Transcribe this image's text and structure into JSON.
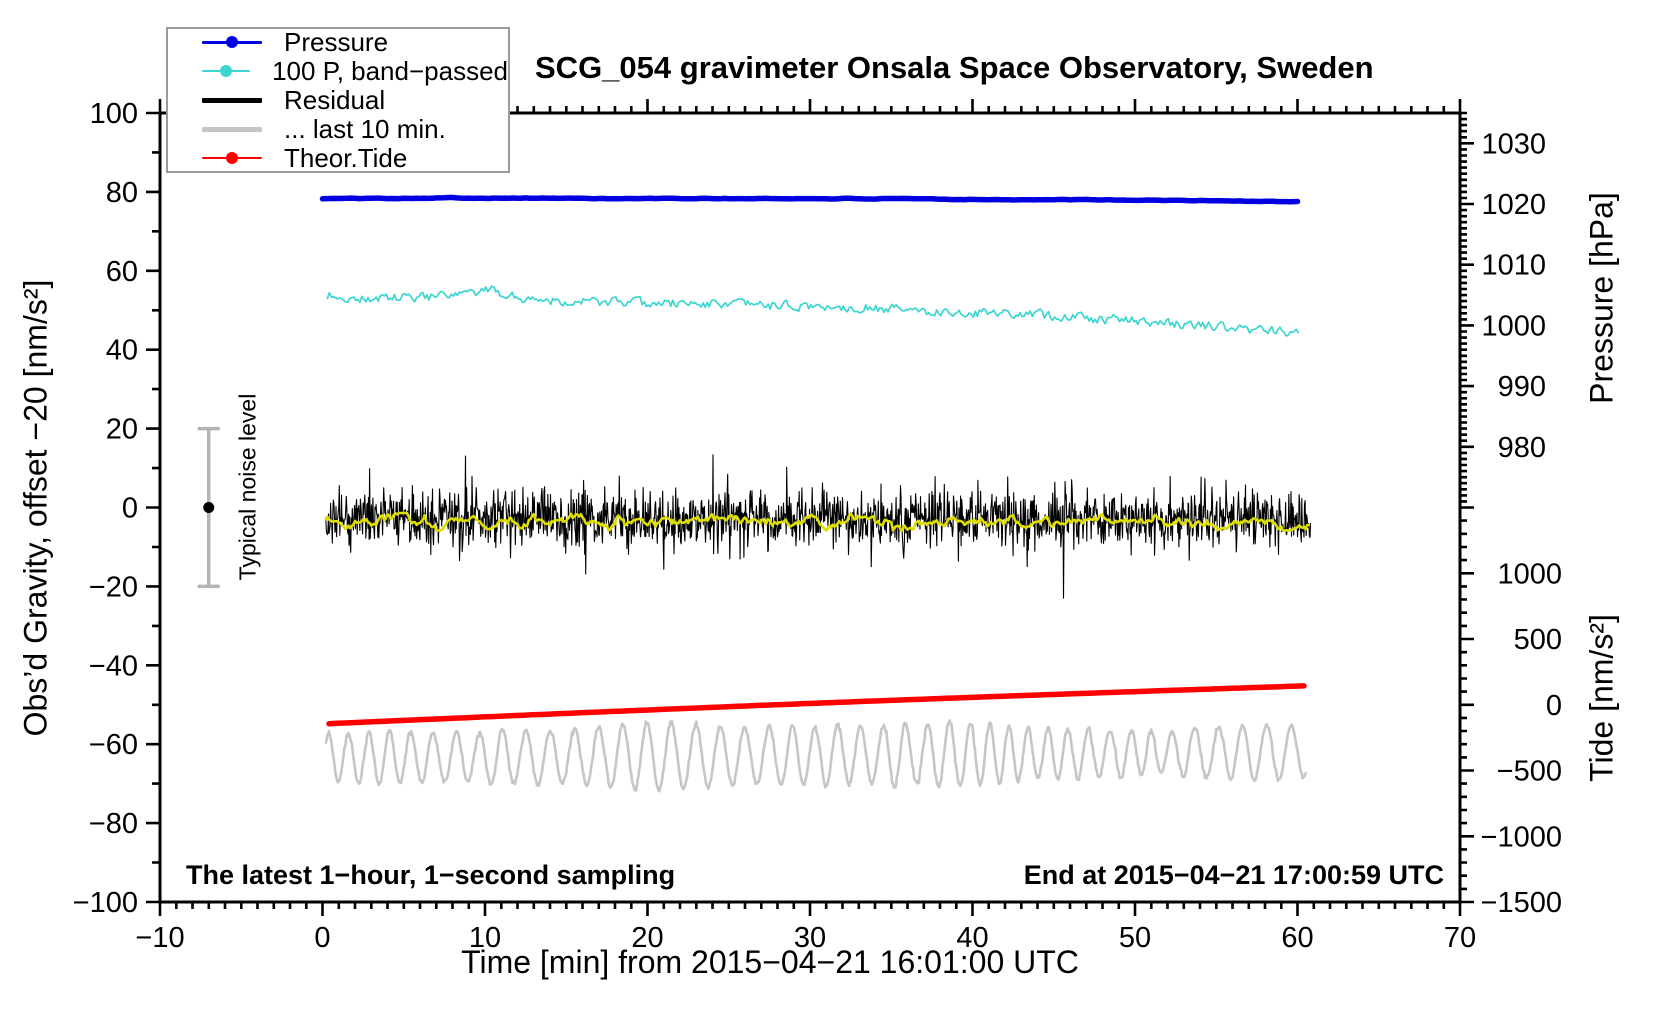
{
  "title": "SCG_054 gravimeter Onsala Space Observatory, Sweden",
  "annotations": {
    "sampling_note": "The latest 1−hour, 1−second sampling",
    "end_note": "End at 2015−04−21 17:00:59 UTC"
  },
  "legend": {
    "items": [
      {
        "label": "Pressure",
        "color": "#0000e0",
        "line_width": 3,
        "marker": true
      },
      {
        "label": "100 P, band−passed",
        "color": "#3cd5d0",
        "line_width": 2.5,
        "marker": true
      },
      {
        "label": "Residual",
        "color": "#000000",
        "line_width": 5,
        "marker": false
      },
      {
        "label": "... last 10 min.",
        "color": "#c4c4c4",
        "line_width": 5,
        "marker": false
      },
      {
        "label": "Theor.Tide",
        "color": "#ff0000",
        "line_width": 2.5,
        "marker": true
      }
    ]
  },
  "chart_data": {
    "type": "line",
    "title": "SCG_054 gravimeter Onsala Space Observatory, Sweden",
    "xlabel": "Time [min] from 2015−04−21 16:01:00 UTC",
    "ylabel_left": "Obs’d Gravity, offset −20 [nm/s²]",
    "xlim": [
      -10,
      70
    ],
    "ylim_left": [
      -100,
      100
    ],
    "grid": false,
    "x_ticks": {
      "values": [
        -10,
        0,
        10,
        20,
        30,
        40,
        50,
        60,
        70
      ],
      "labels": [
        "−10",
        "0",
        "10",
        "20",
        "30",
        "40",
        "50",
        "60",
        "70"
      ],
      "minor_step": 1
    },
    "y_ticks_left": {
      "values": [
        100,
        80,
        60,
        40,
        20,
        0,
        -20,
        -40,
        -60,
        -80,
        -100
      ],
      "labels": [
        "100",
        "80",
        "60",
        "40",
        "20",
        "0",
        "−20",
        "−40",
        "−60",
        "−80",
        "−100"
      ],
      "minor_step": 10
    },
    "right_axis_pressure": {
      "label": "Pressure [hPa]",
      "range": [
        970,
        1035
      ],
      "maps_to_gravity": [
        0,
        100
      ],
      "major_ticks": {
        "values": [
          1030,
          1020,
          1010,
          1000,
          990,
          980
        ],
        "labels": [
          "1030",
          "1020",
          "1010",
          "1000",
          "990",
          "980"
        ]
      },
      "minor_step": 1
    },
    "right_axis_tide": {
      "label": "Tide [nm/s²]",
      "range": [
        -1500,
        1500
      ],
      "maps_to_gravity": [
        -100,
        0
      ],
      "major_ticks": {
        "values": [
          1000,
          500,
          0,
          -500,
          -1000,
          -1500
        ],
        "labels": [
          "1000",
          "500",
          "0",
          "−500",
          "−1000",
          "−1500"
        ]
      },
      "minor_step": 100
    },
    "noise_bar": {
      "x": -7,
      "center": 0,
      "half_span": 20,
      "label": "Typical noise level",
      "bar_color": "#b4b4b4",
      "dot_color": "#000000"
    },
    "series": [
      {
        "name": "Pressure",
        "color": "#0000e0",
        "width": 5.5,
        "points_per_min": 4,
        "x_range": [
          0,
          60.1
        ],
        "seed": 101,
        "gen": {
          "kind": "control",
          "corr": 0.7,
          "noise": 0.08,
          "points": [
            [
              0,
              78.3
            ],
            [
              8,
              78.5
            ],
            [
              20,
              78.3
            ],
            [
              32,
              78.3
            ],
            [
              45,
              78.0
            ],
            [
              55,
              77.8
            ],
            [
              60.1,
              77.5
            ]
          ]
        },
        "reading": "barometric pressure ~1020.5 hPa, nearly flat, slight decline"
      },
      {
        "name": "100 P, band−passed",
        "color": "#3cd5d0",
        "width": 1.7,
        "points_per_min": 8,
        "x_range": [
          0.3,
          60.1
        ],
        "seed": 202,
        "gen": {
          "kind": "control",
          "corr": 0.35,
          "noise": 0.55,
          "points": [
            [
              0.3,
              53.8
            ],
            [
              2,
              52.8
            ],
            [
              5,
              53.2
            ],
            [
              8,
              53.5
            ],
            [
              10.5,
              55.0
            ],
            [
              12,
              53.2
            ],
            [
              15,
              52.3
            ],
            [
              20,
              51.8
            ],
            [
              25,
              51.6
            ],
            [
              30,
              50.9
            ],
            [
              34,
              50.6
            ],
            [
              38,
              49.6
            ],
            [
              42,
              49.2
            ],
            [
              46,
              48.4
            ],
            [
              50,
              47.3
            ],
            [
              54,
              46.2
            ],
            [
              58,
              44.9
            ],
            [
              60.1,
              44.4
            ]
          ]
        },
        "reading": "scaled band-passed pressure, declines from ~54 to ~44 nm/s2 equivalent"
      },
      {
        "name": "Residual",
        "color": "#000000",
        "width": 1.1,
        "points_per_min": 30,
        "x_range": [
          0.2,
          60.8
        ],
        "seed": 303,
        "gen": {
          "kind": "noise",
          "mean": -3,
          "sigma": 3.6,
          "spike_p": 0.015,
          "spike_amp": 9
        },
        "reading": "high-frequency residual noise band centered near -3, excursions to about +14 / -22"
      },
      {
        "name": "Residual smoothed (yellow overlay)",
        "color": "#dddd00",
        "width": 2.6,
        "points_per_min": 10,
        "x_range": [
          0.2,
          60.8
        ],
        "seed": 404,
        "in_legend": false,
        "gen": {
          "kind": "smooth",
          "mean": -3.6,
          "amp": 1.1
        },
        "reading": "smoothed residual riding at ~ -3.5"
      },
      {
        "name": "... last 10 min.",
        "color": "#c6c6c6",
        "width": 2.6,
        "points_per_min": 20,
        "x_range": [
          0.2,
          60.5
        ],
        "seed": 505,
        "gen": {
          "kind": "wave",
          "mean": -63.5,
          "amp": 7,
          "period": 1.15,
          "trend": 1.5
        },
        "reading": "last 10 minutes of residual stretched across plot, oscillating roughly -53 to -76"
      },
      {
        "name": "Theor.Tide",
        "color": "#ff0000",
        "width": 5.5,
        "points_per_min": 2,
        "x_range": [
          0.4,
          60.5
        ],
        "seed": 606,
        "gen": {
          "kind": "tide",
          "start": -54.8,
          "end": -45.2,
          "bow": 0.4
        },
        "reading": "theoretical tide, ~ -140 to +150 nm/s2 on tide axis, slowly rising straight line"
      }
    ]
  }
}
